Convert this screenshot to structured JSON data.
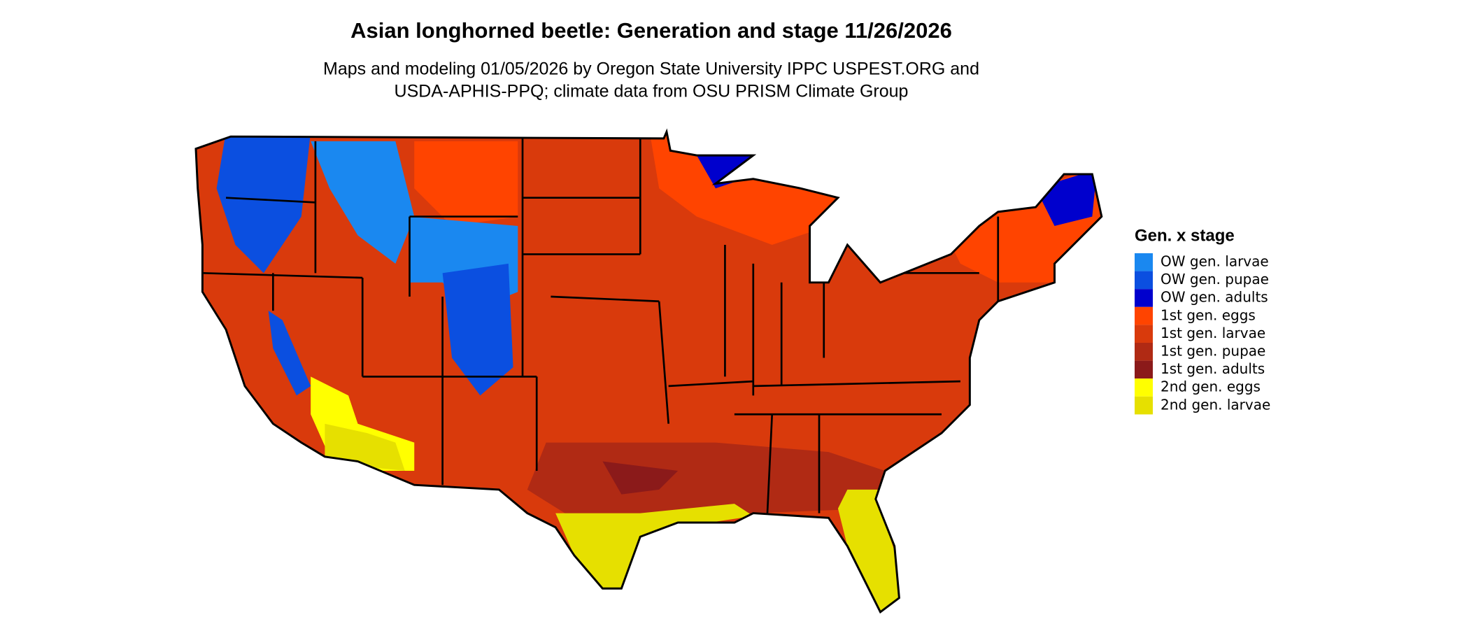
{
  "header": {
    "title": "Asian longhorned beetle: Generation and stage 11/26/2026",
    "subtitle": [
      "Maps and modeling 01/05/2026 by Oregon State University IPPC USPEST.ORG and",
      "USDA-APHIS-PPQ; climate data from OSU PRISM Climate Group"
    ]
  },
  "legend": {
    "title": "Gen. x stage",
    "items": [
      {
        "label": "OW gen. larvae",
        "color": "#1a88f0"
      },
      {
        "label": "OW gen. pupae",
        "color": "#0b4fe0"
      },
      {
        "label": "OW gen. adults",
        "color": "#0000cd"
      },
      {
        "label": "1st gen. eggs",
        "color": "#ff4400"
      },
      {
        "label": "1st gen. larvae",
        "color": "#d93a0c"
      },
      {
        "label": "1st gen. pupae",
        "color": "#b02a14"
      },
      {
        "label": "1st gen. adults",
        "color": "#8b1a1a"
      },
      {
        "label": "2nd gen. eggs",
        "color": "#ffff00"
      },
      {
        "label": "2nd gen. larvae",
        "color": "#e6e000"
      }
    ]
  }
}
